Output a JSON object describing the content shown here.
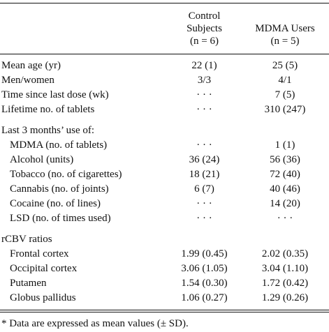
{
  "header": {
    "control": [
      "Control",
      "Subjects",
      "(n = 6)"
    ],
    "mdma": [
      "MDMA Users",
      "(n = 5)"
    ]
  },
  "rows": [
    {
      "label": "Mean age (yr)",
      "control": "22 (1)",
      "mdma": "25 (5)",
      "indent": false
    },
    {
      "label": "Men/women",
      "control": "3/3",
      "mdma": "4/1",
      "indent": false
    },
    {
      "label": "Time since last dose (wk)",
      "control": "· · ·",
      "mdma": "7 (5)",
      "indent": false
    },
    {
      "label": "Lifetime no. of tablets",
      "control": "· · ·",
      "mdma": "310 (247)",
      "indent": false
    },
    {
      "label": "Last 3 months’ use of:",
      "control": "",
      "mdma": "",
      "indent": false
    },
    {
      "label": "MDMA (no. of tablets)",
      "control": "· · ·",
      "mdma": "1 (1)",
      "indent": true
    },
    {
      "label": "Alcohol (units)",
      "control": "36 (24)",
      "mdma": "56 (36)",
      "indent": true
    },
    {
      "label": "Tobacco (no. of cigarettes)",
      "control": "18 (21)",
      "mdma": "72 (40)",
      "indent": true
    },
    {
      "label": "Cannabis (no. of joints)",
      "control": "6 (7)",
      "mdma": "40 (46)",
      "indent": true
    },
    {
      "label": "Cocaine (no. of lines)",
      "control": "· · ·",
      "mdma": "14 (20)",
      "indent": true
    },
    {
      "label": "LSD (no. of times used)",
      "control": "· · ·",
      "mdma": "· · ·",
      "indent": true
    },
    {
      "label": "rCBV ratios",
      "control": "",
      "mdma": "",
      "indent": false
    },
    {
      "label": "Frontal cortex",
      "control": "1.99 (0.45)",
      "mdma": "2.02 (0.35)",
      "indent": true
    },
    {
      "label": "Occipital cortex",
      "control": "3.06 (1.05)",
      "mdma": "3.04 (1.10)",
      "indent": true
    },
    {
      "label": "Putamen",
      "control": "1.54 (0.30)",
      "mdma": "1.72 (0.42)",
      "indent": true
    },
    {
      "label": "Globus pallidus",
      "control": "1.06 (0.27)",
      "mdma": "1.29 (0.26)",
      "indent": true
    }
  ],
  "footnote": "* Data are expressed as mean values (± SD)."
}
